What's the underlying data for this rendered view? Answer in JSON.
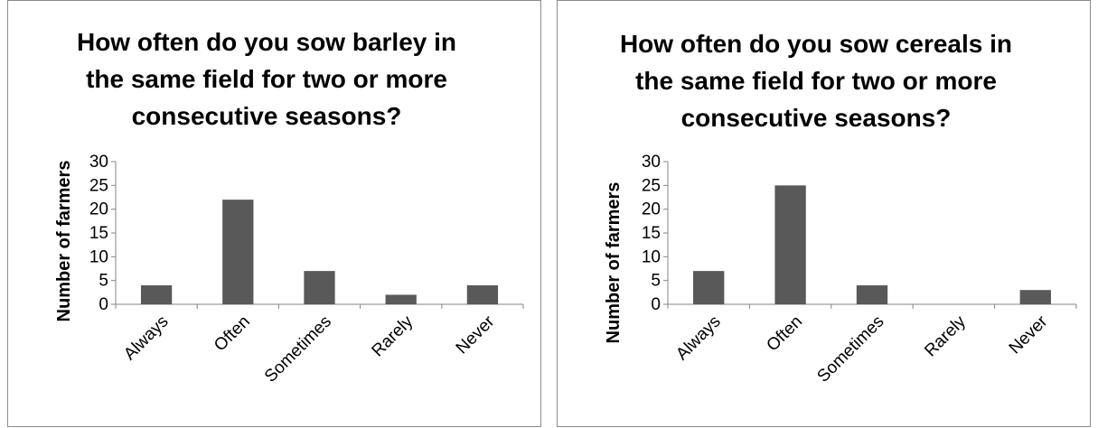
{
  "chart_data": [
    {
      "type": "bar",
      "title": "How often do you sow barley in the same field for two or more consecutive seasons?",
      "title_lines": [
        "How often do you sow barley in",
        "the same field for two or more",
        "consecutive seasons?"
      ],
      "ylabel": "Number of farmers",
      "xlabel": "",
      "categories": [
        "Always",
        "Often",
        "Sometimes",
        "Rarely",
        "Never"
      ],
      "values": [
        4,
        22,
        7,
        2,
        4
      ],
      "ylim": [
        0,
        30
      ],
      "yticks": [
        0,
        5,
        10,
        15,
        20,
        25,
        30
      ],
      "grid": false,
      "legend": "none",
      "bar_color": "#595959"
    },
    {
      "type": "bar",
      "title": "How often do you sow cereals in the same field for two or more consecutive seasons?",
      "title_lines": [
        "How often do you sow cereals in",
        "the same field for two or more",
        "consecutive seasons?"
      ],
      "ylabel": "Number of farmers",
      "xlabel": "",
      "categories": [
        "Always",
        "Often",
        "Sometimes",
        "Rarely",
        "Never"
      ],
      "values": [
        7,
        25,
        4,
        0,
        3
      ],
      "ylim": [
        0,
        30
      ],
      "yticks": [
        0,
        5,
        10,
        15,
        20,
        25,
        30
      ],
      "grid": false,
      "legend": "none",
      "bar_color": "#595959"
    }
  ]
}
